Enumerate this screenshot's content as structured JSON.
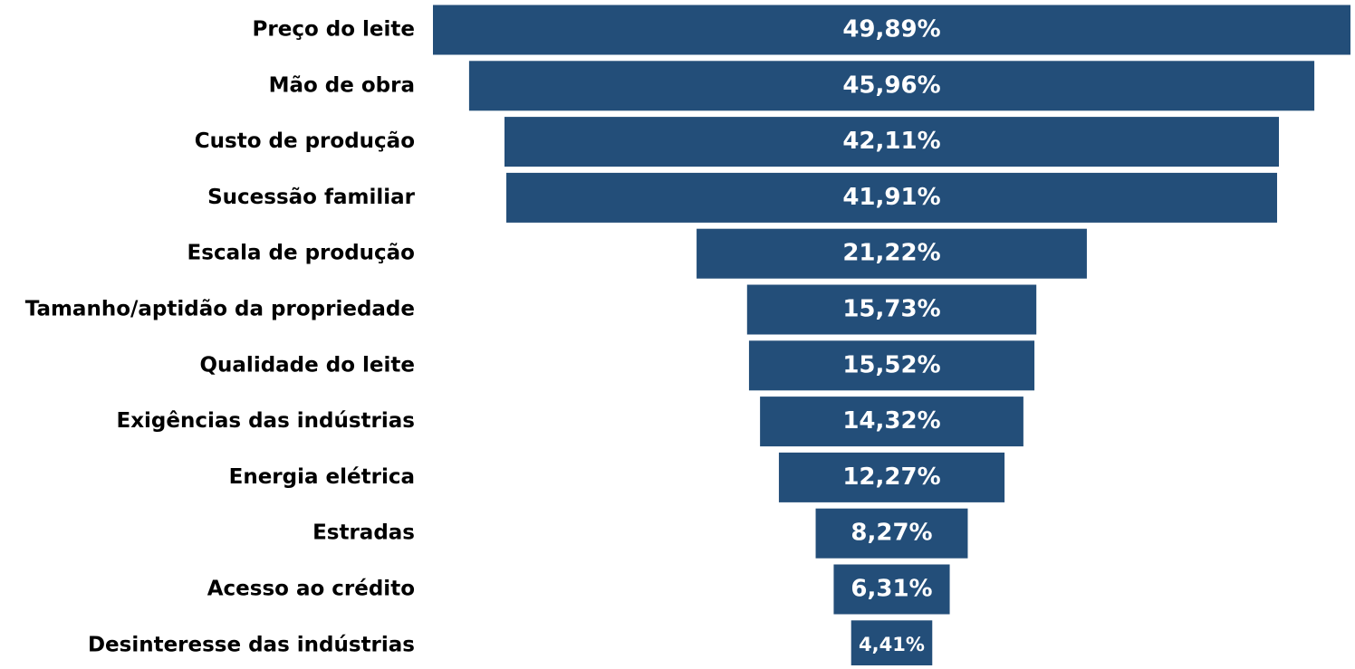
{
  "chart_data": {
    "type": "funnel",
    "categories": [
      "Preço do leite",
      "Mão de obra",
      "Custo de produção",
      "Sucessão familiar",
      "Escala de produção",
      "Tamanho/aptidão da propriedade",
      "Qualidade do leite",
      "Exigências das indústrias",
      "Energia elétrica",
      "Estradas",
      "Acesso ao crédito",
      "Desinteresse das indústrias"
    ],
    "values": [
      49.89,
      45.96,
      42.11,
      41.91,
      21.22,
      15.73,
      15.52,
      14.32,
      12.27,
      8.27,
      6.31,
      4.41
    ],
    "value_labels": [
      "49,89%",
      "45,96%",
      "42,11%",
      "41,91%",
      "21,22%",
      "15,73%",
      "15,52%",
      "14,32%",
      "12,27%",
      "8,27%",
      "6,31%",
      "4,41%"
    ],
    "color": "#234e79"
  }
}
